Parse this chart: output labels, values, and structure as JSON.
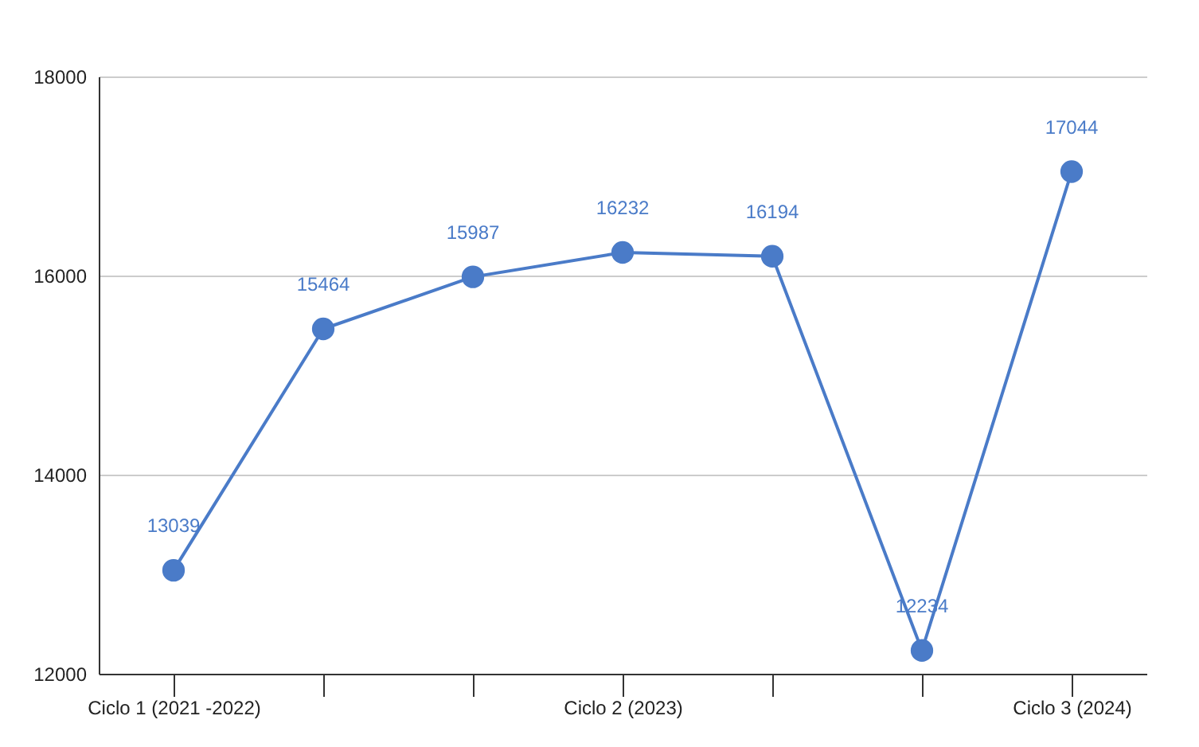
{
  "chart_data": {
    "type": "line",
    "categories": [
      "Ciclo 1 (2021 -2022)",
      null,
      null,
      "Ciclo 2 (2023)",
      null,
      null,
      "Ciclo 3 (2024)"
    ],
    "series": [
      {
        "color": "#4a7bc8",
        "values": [
          13039,
          15464,
          15987,
          16232,
          16194,
          12234,
          17044
        ]
      }
    ],
    "ylim": [
      12000,
      18000
    ],
    "yticks": [
      12000,
      14000,
      16000,
      18000
    ],
    "grid": "y",
    "marker": "circle",
    "line_style": "solid",
    "data_labels": true,
    "legend": false
  }
}
